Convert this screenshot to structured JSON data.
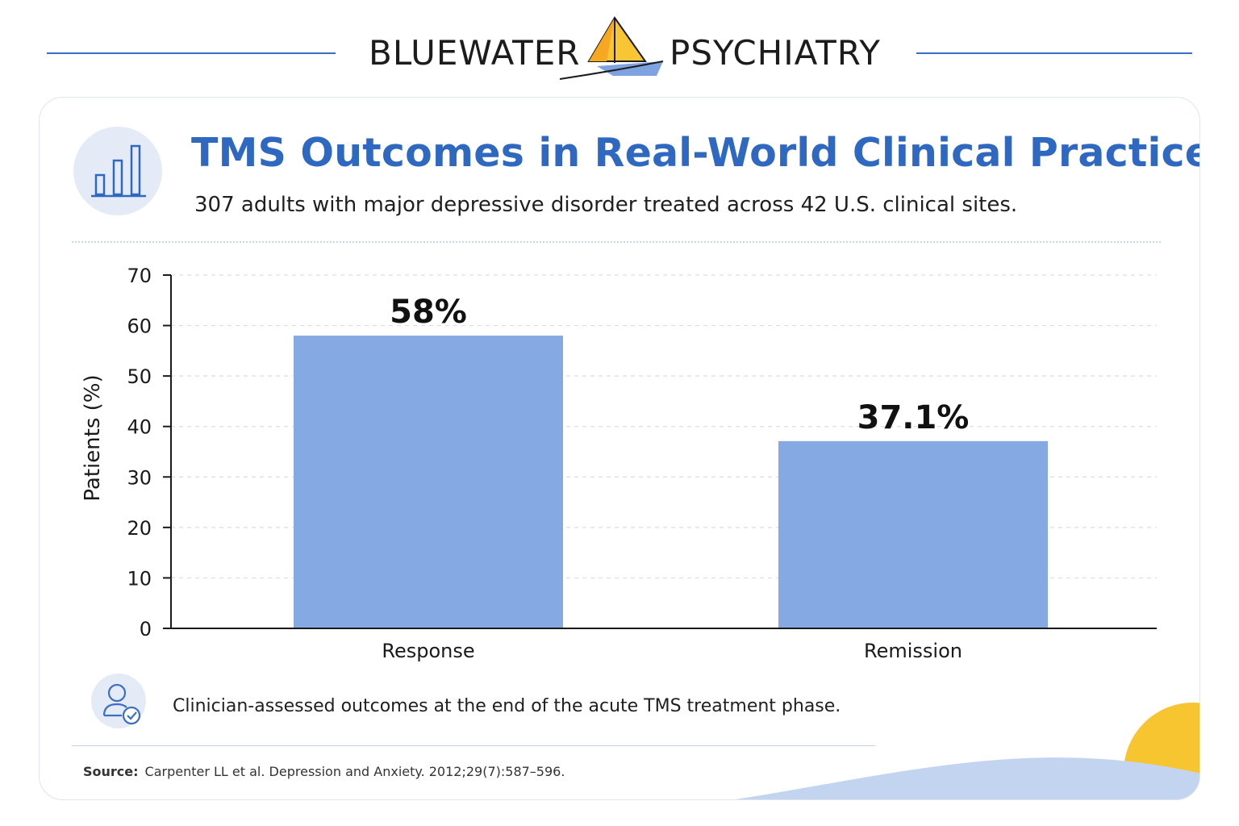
{
  "brand": {
    "left_word": "BLUEWATER",
    "right_word": "PSYCHIATRY",
    "logo_icon": "sailboat-icon",
    "colors": {
      "rule": "#3b6fc4",
      "sail_front": "#f6a823",
      "sail_back": "#f8c534",
      "hull": "#7fa3e0"
    }
  },
  "header": {
    "icon": "bar-chart-icon",
    "title": "TMS Outcomes in Real-World Clinical Practice",
    "subtitle": "307 adults with major depressive disorder treated across 42 U.S. clinical sites."
  },
  "chart_data": {
    "type": "bar",
    "categories": [
      "Response",
      "Remission"
    ],
    "values": [
      58,
      37.1
    ],
    "data_labels": [
      "58%",
      "37.1%"
    ],
    "ylabel": "Patients (%)",
    "xlabel": "",
    "ylim": [
      0,
      70
    ],
    "yticks": [
      0,
      10,
      20,
      30,
      40,
      50,
      60,
      70
    ],
    "grid": "horizontal dashed",
    "bar_color": "#84a9e3",
    "legend": "none"
  },
  "note": {
    "icon": "clinician-check-icon",
    "text": "Clinician-assessed outcomes at the end of the acute TMS treatment phase."
  },
  "source": {
    "label": "Source:",
    "text": "Carpenter LL et al. Depression and Anxiety. 2012;29(7):587–596."
  },
  "accents": {
    "title": "#2f68c0",
    "sun": "#f7c530",
    "wave": "#c3d4f0"
  }
}
